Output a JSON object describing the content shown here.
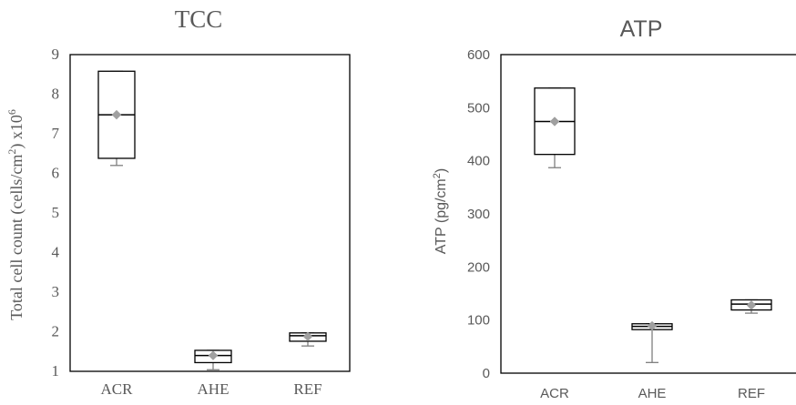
{
  "chart_data": [
    {
      "type": "box",
      "title": "TCC",
      "ylabel_main": "Total cell count (cells/cm",
      "ylabel_sup": "2",
      "ylabel_after": ") x10",
      "ylabel_exp": "6",
      "xlabel": "",
      "ylim": [
        1,
        9
      ],
      "yticks": [
        "1",
        "2",
        "3",
        "4",
        "5",
        "6",
        "7",
        "8",
        "9"
      ],
      "categories": [
        "ACR",
        "AHE",
        "REF"
      ],
      "boxes": [
        {
          "name": "ACR",
          "min": 6.2,
          "q1": 6.38,
          "median": 7.48,
          "q3": 8.58,
          "max": 8.58,
          "mean": 7.48
        },
        {
          "name": "AHE",
          "min": 1.04,
          "q1": 1.22,
          "median": 1.4,
          "q3": 1.53,
          "max": 1.53,
          "mean": 1.4
        },
        {
          "name": "REF",
          "min": 1.64,
          "q1": 1.76,
          "median": 1.9,
          "q3": 1.97,
          "max": 1.97,
          "mean": 1.88
        }
      ],
      "grid": false,
      "legend": "none",
      "colors": {
        "box": "#000000",
        "whisker": "#7f7f7f",
        "mean": "#a0a0a0",
        "text": "#595959"
      }
    },
    {
      "type": "box",
      "title": "ATP",
      "ylabel_main": "ATP (pg/cm",
      "ylabel_sup": "2",
      "ylabel_after": ")",
      "ylabel_exp": "",
      "xlabel": "",
      "ylim": [
        0,
        600
      ],
      "yticks": [
        "0",
        "100",
        "200",
        "300",
        "400",
        "500",
        "600"
      ],
      "categories": [
        "ACR",
        "AHE",
        "REF"
      ],
      "boxes": [
        {
          "name": "ACR",
          "min": 387,
          "q1": 412,
          "median": 474,
          "q3": 537,
          "max": 537,
          "mean": 474
        },
        {
          "name": "AHE",
          "min": 20,
          "q1": 82,
          "median": 88,
          "q3": 93,
          "max": 93,
          "mean": 89
        },
        {
          "name": "REF",
          "min": 113,
          "q1": 119,
          "median": 130,
          "q3": 138,
          "max": 138,
          "mean": 128
        }
      ],
      "grid": false,
      "legend": "none",
      "colors": {
        "box": "#000000",
        "whisker": "#7f7f7f",
        "mean": "#a0a0a0",
        "text": "#595959"
      }
    }
  ]
}
